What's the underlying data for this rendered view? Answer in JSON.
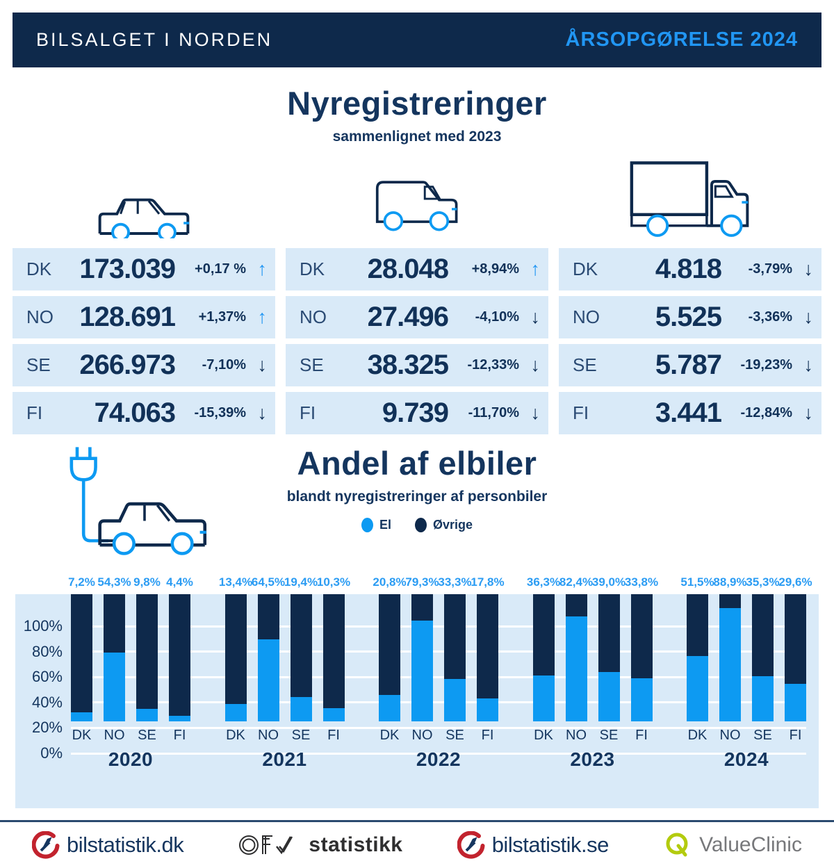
{
  "header": {
    "title": "BILSALGET I NORDEN",
    "badge": "ÅRSOPGØRELSE 2024"
  },
  "registrations": {
    "title": "Nyregistreringer",
    "subtitle": "sammenlignet med 2023",
    "columns": [
      {
        "icon": "car-icon",
        "rows": [
          {
            "country": "DK",
            "value": "173.039",
            "change": "+0,17 %",
            "direction": "up"
          },
          {
            "country": "NO",
            "value": "128.691",
            "change": "+1,37%",
            "direction": "up"
          },
          {
            "country": "SE",
            "value": "266.973",
            "change": "-7,10%",
            "direction": "down"
          },
          {
            "country": "FI",
            "value": "74.063",
            "change": "-15,39%",
            "direction": "down"
          }
        ]
      },
      {
        "icon": "van-icon",
        "rows": [
          {
            "country": "DK",
            "value": "28.048",
            "change": "+8,94%",
            "direction": "up"
          },
          {
            "country": "NO",
            "value": "27.496",
            "change": "-4,10%",
            "direction": "down"
          },
          {
            "country": "SE",
            "value": "38.325",
            "change": "-12,33%",
            "direction": "down"
          },
          {
            "country": "FI",
            "value": "9.739",
            "change": "-11,70%",
            "direction": "down"
          }
        ]
      },
      {
        "icon": "truck-icon",
        "rows": [
          {
            "country": "DK",
            "value": "4.818",
            "change": "-3,79%",
            "direction": "down"
          },
          {
            "country": "NO",
            "value": "5.525",
            "change": "-3,36%",
            "direction": "down"
          },
          {
            "country": "SE",
            "value": "5.787",
            "change": "-19,23%",
            "direction": "down"
          },
          {
            "country": "FI",
            "value": "3.441",
            "change": "-12,84%",
            "direction": "down"
          }
        ]
      }
    ]
  },
  "ev": {
    "title": "Andel af elbiler",
    "subtitle": "blandt nyregistreringer af personbiler",
    "icon": "ev-plug-car-icon",
    "legend": [
      {
        "label": "El",
        "color": "#0d9af2"
      },
      {
        "label": "Øvrige",
        "color": "#0e294b"
      }
    ]
  },
  "chart_data": {
    "type": "bar",
    "stacked": true,
    "title": "Andel af elbiler blandt nyregistreringer af personbiler",
    "ylabel": "",
    "xlabel": "",
    "ylim": [
      0,
      100
    ],
    "yticks": [
      "0%",
      "20%",
      "40%",
      "60%",
      "80%",
      "100%"
    ],
    "grid": true,
    "legend_position": "top",
    "categories": [
      "DK",
      "NO",
      "SE",
      "FI"
    ],
    "groups": [
      "2020",
      "2021",
      "2022",
      "2023",
      "2024"
    ],
    "series": [
      {
        "name": "El",
        "values": [
          [
            7.2,
            54.3,
            9.8,
            4.4
          ],
          [
            13.4,
            64.5,
            19.4,
            10.3
          ],
          [
            20.8,
            79.3,
            33.3,
            17.8
          ],
          [
            36.3,
            82.4,
            39.0,
            33.8
          ],
          [
            51.5,
            88.9,
            35.3,
            29.6
          ]
        ],
        "labels": [
          [
            "7,2%",
            "54,3%",
            "9,8%",
            "4,4%"
          ],
          [
            "13,4%",
            "64,5%",
            "19,4%",
            "10,3%"
          ],
          [
            "20,8%",
            "79,3%",
            "33,3%",
            "17,8%"
          ],
          [
            "36,3%",
            "82,4%",
            "39,0%",
            "33,8%"
          ],
          [
            "51,5%",
            "88,9%",
            "35,3%",
            "29,6%"
          ]
        ],
        "color": "#0d9af2"
      },
      {
        "name": "Øvrige",
        "note": "remainder to 100%",
        "color": "#0e294b"
      }
    ]
  },
  "footer": {
    "logos": [
      {
        "icon": "bilstatistik-speedometer-icon",
        "label": "bilstatistik.dk"
      },
      {
        "icon": "ofv-logo-icon",
        "label": "statistikk"
      },
      {
        "icon": "bilstatistik-speedometer-icon",
        "label": "bilstatistik.se"
      },
      {
        "icon": "valueclinic-q-icon",
        "label": "ValueClinic"
      }
    ]
  },
  "colors": {
    "navy": "#0e294b",
    "text_navy": "#14355e",
    "accent_blue": "#2196f3",
    "bar_blue": "#0d9af2",
    "panel_light_blue": "#d9eaf8",
    "logo_red": "#c2232e",
    "logo_green": "#b3cb0e",
    "logo_gray": "#77787b"
  }
}
